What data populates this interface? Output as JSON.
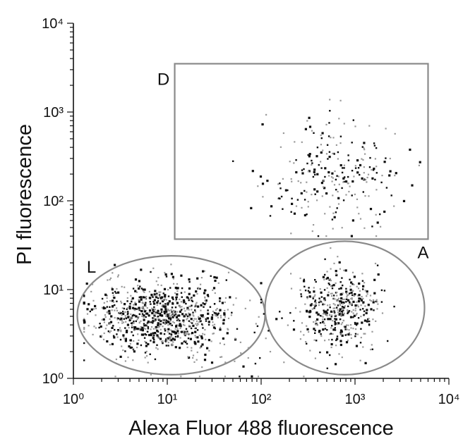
{
  "chart_data": {
    "type": "scatter",
    "xlabel": "Alexa Fluor 488 fluorescence",
    "ylabel": "PI fluorescence",
    "xscale": "log",
    "yscale": "log",
    "xlim": [
      1,
      10000
    ],
    "ylim": [
      1,
      10000
    ],
    "x_tick_labels": [
      "10⁰",
      "10¹",
      "10²",
      "10³",
      "10⁴"
    ],
    "y_tick_labels": [
      "10⁰",
      "10¹",
      "10²",
      "10³",
      "10⁴"
    ],
    "grid": false,
    "point_colors": [
      "#111111",
      "#9a9a9a"
    ],
    "gates": [
      {
        "label": "D",
        "shape": "rectangle",
        "x_range": [
          12,
          6000
        ],
        "y_range": [
          37,
          3500
        ]
      },
      {
        "label": "L",
        "shape": "ellipse",
        "x_range": [
          1.1,
          110
        ],
        "y_range": [
          1.1,
          24
        ]
      },
      {
        "label": "A",
        "shape": "ellipse",
        "x_range": [
          110,
          5500
        ],
        "y_range": [
          1.1,
          35
        ]
      }
    ],
    "populations": [
      {
        "gate": "L",
        "approx_x_center": 8,
        "approx_y_center": 5,
        "approx_points": 900
      },
      {
        "gate": "A",
        "approx_x_center": 650,
        "approx_y_center": 6,
        "approx_points": 450
      },
      {
        "gate": "D",
        "approx_x_center": 600,
        "approx_y_center": 200,
        "approx_points": 260
      }
    ]
  }
}
